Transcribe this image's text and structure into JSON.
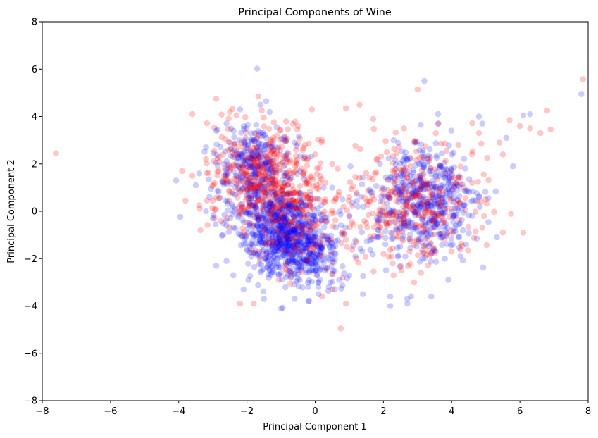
{
  "chart_data": {
    "type": "scatter",
    "title": "Principal Components of Wine",
    "xlabel": "Principal Component 1",
    "ylabel": "Principal Component 2",
    "xlim": [
      -8,
      8
    ],
    "ylim": [
      -8,
      8
    ],
    "xticks": [
      -8,
      -6,
      -4,
      -2,
      0,
      2,
      4,
      6,
      8
    ],
    "yticks": [
      -8,
      -6,
      -4,
      -2,
      0,
      2,
      4,
      6,
      8
    ],
    "grid": false,
    "legend": "none",
    "series": [
      {
        "color": "#ff0000",
        "opacity": 0.22,
        "points": [
          [
            -7.6,
            2.45
          ],
          [
            7.85,
            5.58
          ],
          [
            3.0,
            5.15
          ],
          [
            -2.9,
            4.75
          ],
          [
            -3.6,
            4.1
          ],
          [
            -2.5,
            4.2
          ],
          [
            -0.1,
            4.3
          ],
          [
            0.9,
            4.35
          ],
          [
            1.3,
            4.5
          ],
          [
            0.75,
            -4.95
          ],
          [
            6.9,
            3.45
          ],
          [
            6.8,
            4.25
          ],
          [
            6.6,
            3.3
          ],
          [
            6.3,
            3.5
          ],
          [
            6.0,
            3.6
          ],
          [
            5.7,
            3.85
          ],
          [
            5.5,
            2.4
          ],
          [
            5.4,
            2.9
          ],
          [
            5.5,
            -0.9
          ],
          [
            6.1,
            -0.9
          ],
          [
            5.0,
            0.5
          ],
          [
            4.9,
            -0.7
          ],
          [
            4.7,
            -0.85
          ],
          [
            4.8,
            3.3
          ],
          [
            4.6,
            1.2
          ],
          [
            -3.8,
            0.45
          ],
          [
            -3.4,
            0.25
          ],
          [
            -3.9,
            1.7
          ],
          [
            -3.6,
            1.5
          ],
          [
            -3.2,
            2.2
          ],
          [
            -2.2,
            -3.9
          ],
          [
            -1.8,
            -3.9
          ],
          [
            0.9,
            -3.9
          ],
          [
            0.5,
            -3.3
          ],
          [
            0.2,
            -3.6
          ],
          [
            0.8,
            -2.8
          ],
          [
            1.2,
            -2.0
          ],
          [
            0.9,
            -1.2
          ],
          [
            1.5,
            -0.5
          ],
          [
            1.0,
            0.6
          ],
          [
            1.3,
            1.4
          ],
          [
            1.8,
            2.2
          ],
          [
            2.1,
            2.5
          ],
          [
            1.7,
            3.9
          ],
          [
            2.6,
            3.5
          ],
          [
            3.6,
            3.7
          ],
          [
            4.2,
            2.8
          ],
          [
            4.0,
            -1.7
          ],
          [
            3.1,
            -2.6
          ],
          [
            2.9,
            -3.0
          ],
          [
            2.3,
            -2.7
          ],
          [
            2.0,
            -1.8
          ],
          [
            2.5,
            -2.3
          ],
          [
            -0.3,
            2.8
          ],
          [
            -0.5,
            3.6
          ],
          [
            0.2,
            3.0
          ],
          [
            0.0,
            2.4
          ],
          [
            0.5,
            2.0
          ],
          [
            0.3,
            1.2
          ],
          [
            0.6,
            0.5
          ]
        ]
      },
      {
        "color": "#0000ff",
        "opacity": 0.2,
        "points": [
          [
            -1.7,
            6.02
          ],
          [
            3.2,
            5.5
          ],
          [
            7.8,
            4.95
          ],
          [
            6.3,
            4.1
          ],
          [
            6.1,
            4.05
          ],
          [
            5.8,
            1.9
          ],
          [
            5.6,
            3.1
          ],
          [
            4.8,
            4.0
          ],
          [
            4.9,
            3.7
          ],
          [
            3.6,
            4.1
          ],
          [
            -3.4,
            1.6
          ],
          [
            -3.2,
            0.0
          ],
          [
            -3.0,
            -0.3
          ],
          [
            -2.9,
            -2.3
          ],
          [
            -2.6,
            -2.1
          ],
          [
            -2.4,
            -2.7
          ],
          [
            -2.1,
            -3.3
          ],
          [
            -1.5,
            -3.7
          ],
          [
            -1.0,
            -4.1
          ],
          [
            -0.6,
            -3.7
          ],
          [
            -0.2,
            -3.8
          ],
          [
            0.1,
            -3.5
          ],
          [
            0.4,
            -3.2
          ],
          [
            0.7,
            -2.9
          ],
          [
            1.0,
            -2.7
          ],
          [
            1.4,
            -3.5
          ],
          [
            2.2,
            -3.6
          ],
          [
            2.2,
            -4.0
          ],
          [
            2.7,
            -3.7
          ],
          [
            2.7,
            -3.9
          ],
          [
            3.4,
            -3.6
          ],
          [
            3.9,
            -2.9
          ],
          [
            3.8,
            -2.0
          ],
          [
            4.2,
            -1.1
          ],
          [
            4.6,
            -0.2
          ],
          [
            4.8,
            0.6
          ],
          [
            4.4,
            1.8
          ],
          [
            4.0,
            2.4
          ],
          [
            2.3,
            3.0
          ],
          [
            1.9,
            2.0
          ],
          [
            1.6,
            0.9
          ],
          [
            1.8,
            -0.3
          ],
          [
            1.8,
            -1.1
          ],
          [
            1.0,
            -0.2
          ],
          [
            0.8,
            0.5
          ],
          [
            0.5,
            1.0
          ],
          [
            -0.3,
            2.3
          ],
          [
            -0.6,
            2.9
          ],
          [
            -0.9,
            3.0
          ],
          [
            -1.6,
            4.5
          ],
          [
            -2.2,
            4.3
          ],
          [
            -2.6,
            3.7
          ],
          [
            -2.9,
            3.4
          ],
          [
            -3.2,
            2.7
          ],
          [
            -3.5,
            1.1
          ],
          [
            -0.2,
            -3.2
          ],
          [
            0.3,
            -2.4
          ],
          [
            0.6,
            -1.8
          ],
          [
            -2.7,
            -1.0
          ],
          [
            -3.1,
            0.6
          ]
        ]
      }
    ],
    "clusters": [
      {
        "color": "#0000ff",
        "opacity": 0.2,
        "cx": -0.8,
        "cy": -1.0,
        "sx": 0.75,
        "sy": 1.0,
        "rho": -0.3,
        "n": 900
      },
      {
        "color": "#ff0000",
        "opacity": 0.22,
        "cx": -1.4,
        "cy": 1.4,
        "sx": 0.8,
        "sy": 1.1,
        "rho": -0.2,
        "n": 450
      },
      {
        "color": "#0000ff",
        "opacity": 0.2,
        "cx": -1.8,
        "cy": 2.0,
        "sx": 0.55,
        "sy": 0.8,
        "rho": 0.0,
        "n": 250
      },
      {
        "color": "#ff0000",
        "opacity": 0.22,
        "cx": -0.8,
        "cy": -0.4,
        "sx": 0.8,
        "sy": 1.2,
        "rho": -0.2,
        "n": 220
      },
      {
        "color": "#0000ff",
        "opacity": 0.2,
        "cx": 3.2,
        "cy": 0.3,
        "sx": 0.8,
        "sy": 1.2,
        "rho": 0.0,
        "n": 480
      },
      {
        "color": "#ff0000",
        "opacity": 0.22,
        "cx": 2.9,
        "cy": 0.4,
        "sx": 0.9,
        "sy": 1.2,
        "rho": 0.0,
        "n": 350
      }
    ]
  }
}
